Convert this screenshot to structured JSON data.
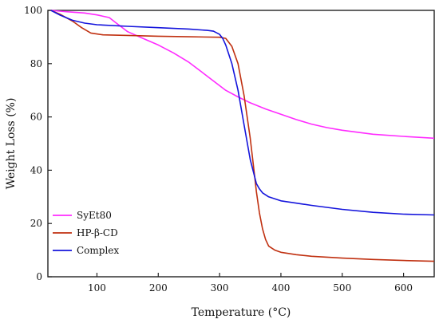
{
  "chart_data": {
    "type": "line",
    "title": "",
    "xlabel": "Temperature (°C)",
    "ylabel": "Weight Loss (%)",
    "xlim": [
      20,
      650
    ],
    "ylim": [
      0,
      100
    ],
    "xticks": [
      100,
      200,
      300,
      400,
      500,
      600
    ],
    "yticks": [
      0,
      20,
      40,
      60,
      80,
      100
    ],
    "grid": false,
    "legend_position": "bottom-left",
    "series": [
      {
        "name": "SyEt80",
        "color": "#ff2bff",
        "x": [
          25,
          50,
          80,
          100,
          120,
          130,
          150,
          175,
          200,
          225,
          250,
          270,
          290,
          310,
          330,
          350,
          375,
          400,
          425,
          450,
          475,
          500,
          550,
          600,
          650
        ],
        "y": [
          100,
          99.5,
          99,
          98.3,
          97.3,
          95.5,
          92,
          89.5,
          87,
          84,
          80.5,
          77,
          73.5,
          70,
          67.5,
          65.3,
          63,
          61,
          59,
          57.3,
          56,
          55,
          53.5,
          52.7,
          52
        ]
      },
      {
        "name": "HP-β-CD",
        "color": "#c03010",
        "x": [
          25,
          40,
          60,
          75,
          90,
          110,
          150,
          200,
          250,
          300,
          310,
          320,
          330,
          340,
          350,
          355,
          360,
          365,
          370,
          375,
          380,
          390,
          400,
          425,
          450,
          500,
          550,
          600,
          650
        ],
        "y": [
          100,
          98.5,
          96,
          93.5,
          91.5,
          90.8,
          90.6,
          90.3,
          90.1,
          89.9,
          89.5,
          86.5,
          80,
          68,
          52,
          42,
          32,
          24,
          18,
          14,
          11.5,
          10,
          9.2,
          8.3,
          7.7,
          7,
          6.5,
          6.1,
          5.8
        ]
      },
      {
        "name": "Complex",
        "color": "#1414dc",
        "x": [
          25,
          40,
          60,
          80,
          100,
          150,
          200,
          250,
          280,
          290,
          300,
          305,
          310,
          320,
          330,
          340,
          350,
          360,
          365,
          370,
          380,
          400,
          450,
          500,
          550,
          600,
          650
        ],
        "y": [
          100,
          98.2,
          96.3,
          95.2,
          94.6,
          94,
          93.5,
          93,
          92.5,
          92.2,
          91,
          89.5,
          87,
          80,
          70,
          57,
          44,
          35,
          33,
          31.5,
          30,
          28.5,
          26.8,
          25.3,
          24.2,
          23.5,
          23.2
        ]
      }
    ]
  }
}
